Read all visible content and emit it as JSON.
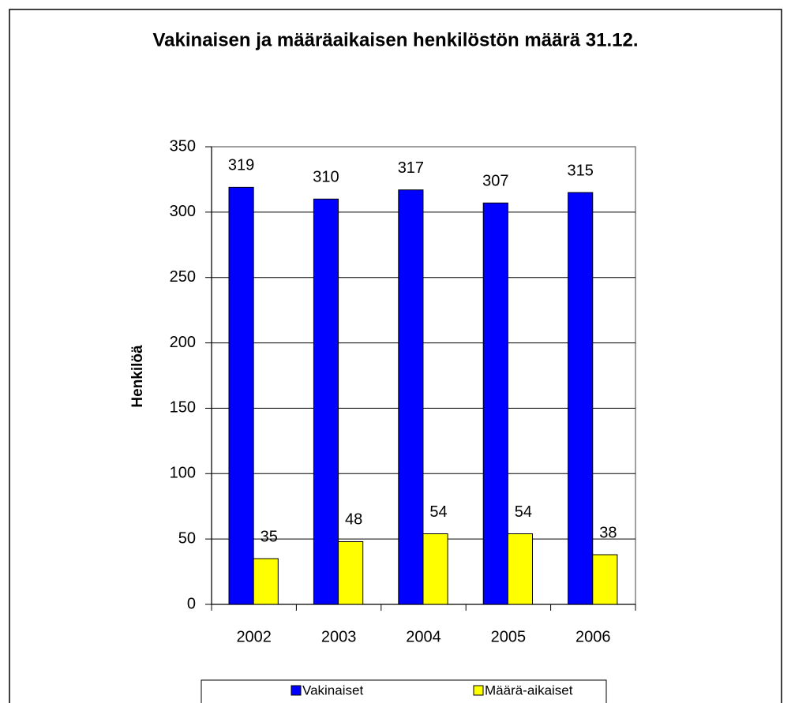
{
  "chart_data": {
    "type": "bar",
    "title": "Vakinaisen ja määräaikaisen henkilöstön määrä 31.12.",
    "y_label": "Henkilöä",
    "categories": [
      "2002",
      "2003",
      "2004",
      "2005",
      "2006"
    ],
    "series": [
      {
        "name": "Vakinaiset",
        "color": "#0000ff",
        "values": [
          319,
          310,
          317,
          307,
          315
        ]
      },
      {
        "name": "Määrä-aikaiset",
        "color": "#ffff00",
        "values": [
          35,
          48,
          54,
          54,
          38
        ]
      }
    ],
    "ylim": [
      0,
      350
    ],
    "yticks": [
      0,
      50,
      100,
      150,
      200,
      250,
      300,
      350
    ],
    "grid": true,
    "legend": "bottom"
  }
}
